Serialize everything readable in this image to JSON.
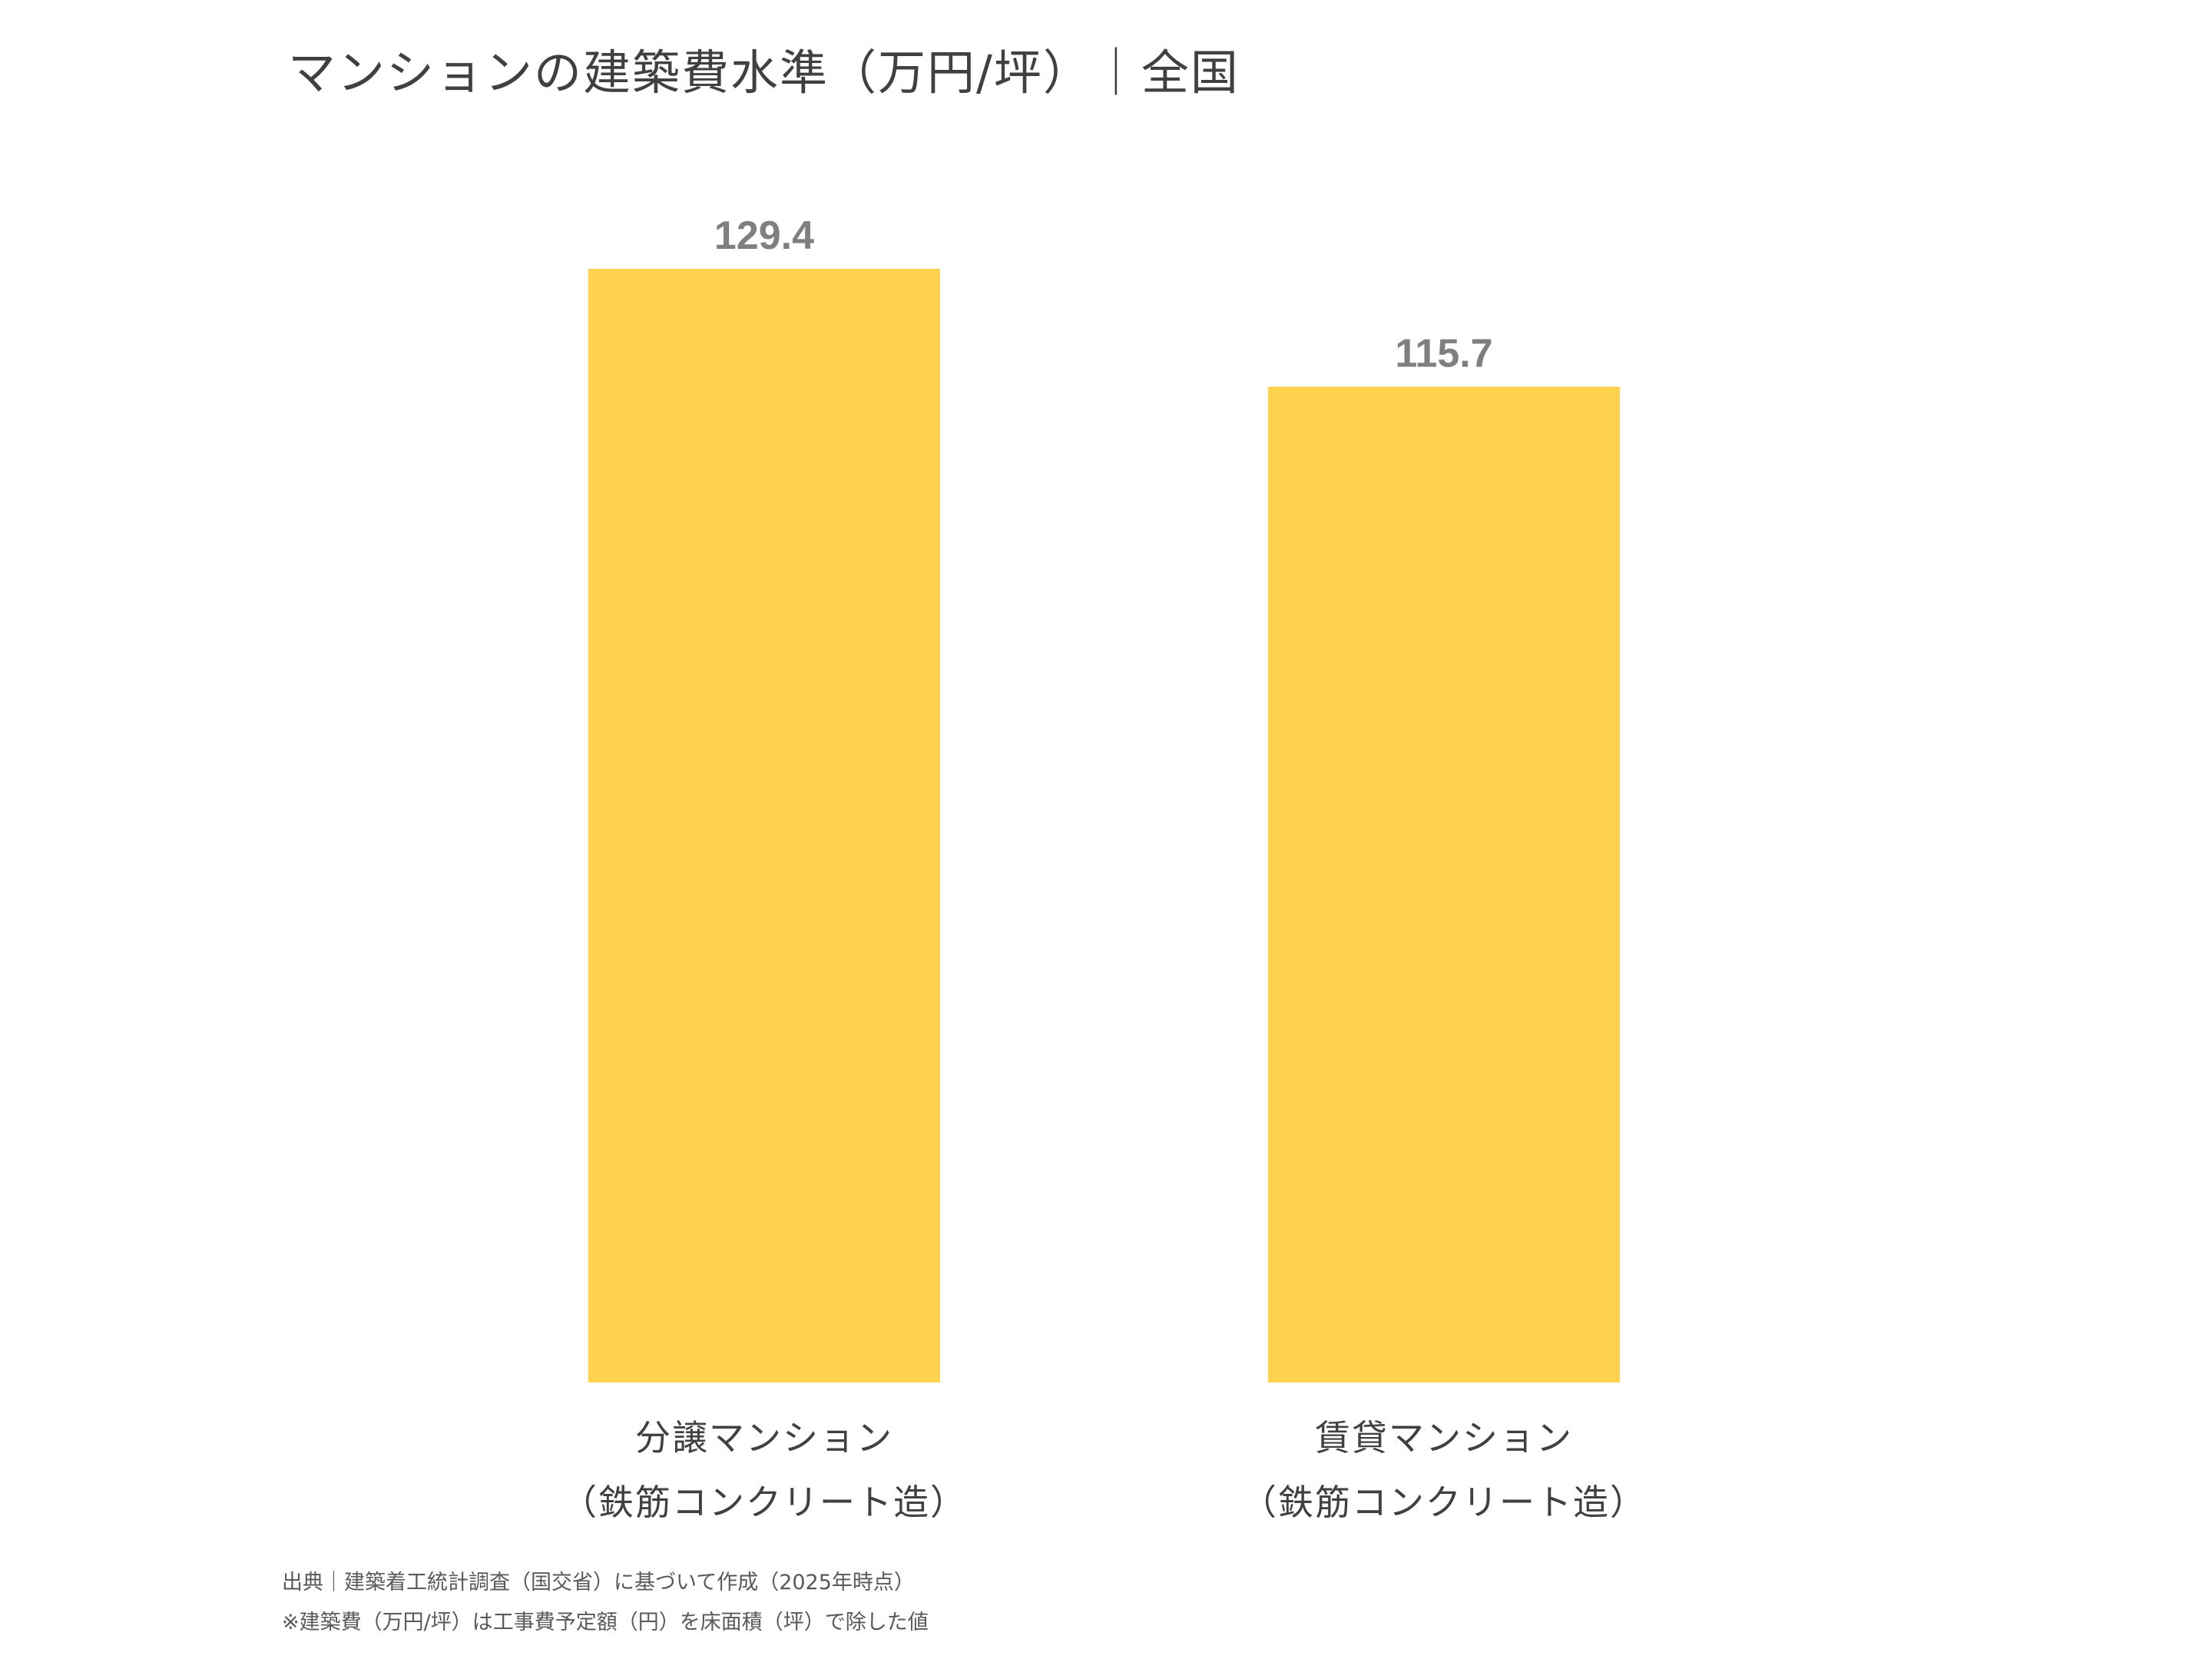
{
  "colors": {
    "bar": "#FFD34E",
    "value_label": "#7F7F7F",
    "text": "#404040"
  },
  "chart_data": {
    "type": "bar",
    "title": "マンションの建築費水準（万円/坪）｜全国",
    "categories": [
      [
        "分譲マンション",
        "（鉄筋コンクリート造）"
      ],
      [
        "賃貸マンション",
        "（鉄筋コンクリート造）"
      ]
    ],
    "values": [
      129.4,
      115.7
    ],
    "value_labels": [
      "129.4",
      "115.7"
    ],
    "xlabel": "",
    "ylabel": "",
    "ylim": [
      0,
      140
    ],
    "grid": false,
    "legend": "none"
  },
  "footnotes": {
    "source": "出典｜建築着工統計調査（国交省）に基づいて作成（2025年時点）",
    "note": "※建築費（万円/坪）は工事費予定額（円）を床面積（坪）で除した値"
  }
}
